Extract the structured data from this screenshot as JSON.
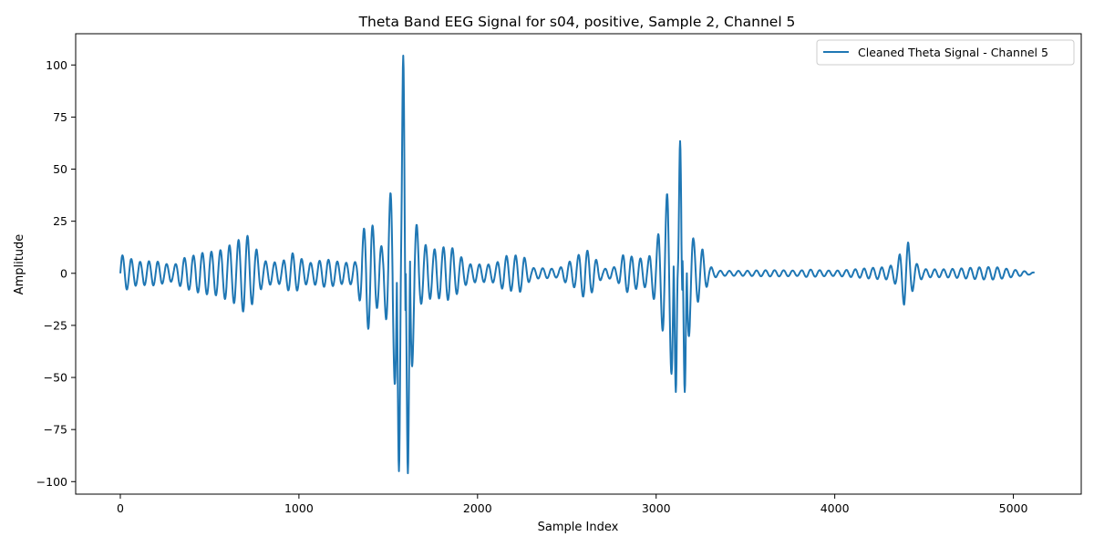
{
  "chart_data": {
    "type": "line",
    "title": "Theta Band EEG Signal for s04, positive, Sample 2, Channel 5",
    "xlabel": "Sample Index",
    "ylabel": "Amplitude",
    "xlim": [
      -250,
      5380
    ],
    "ylim": [
      -106,
      115
    ],
    "xticks": [
      0,
      1000,
      2000,
      3000,
      4000,
      5000
    ],
    "yticks": [
      -100,
      -75,
      -50,
      -25,
      0,
      25,
      50,
      75,
      100
    ],
    "grid": false,
    "legend_position": "top-right",
    "series": [
      {
        "name": "Cleaned Theta Signal - Channel 5",
        "color": "#1f77b4",
        "sample_count": 5120,
        "envelope": [
          [
            0,
            9
          ],
          [
            100,
            6
          ],
          [
            200,
            8
          ],
          [
            300,
            6
          ],
          [
            350,
            11
          ],
          [
            450,
            12
          ],
          [
            550,
            11
          ],
          [
            650,
            15
          ],
          [
            700,
            21
          ],
          [
            750,
            16
          ],
          [
            800,
            8
          ],
          [
            900,
            8
          ],
          [
            960,
            15
          ],
          [
            1050,
            6
          ],
          [
            1150,
            7
          ],
          [
            1250,
            5
          ],
          [
            1320,
            6
          ],
          [
            1380,
            33
          ],
          [
            1400,
            35
          ],
          [
            1430,
            25
          ],
          [
            1470,
            18
          ],
          [
            1500,
            45
          ],
          [
            1520,
            70
          ],
          [
            1540,
            86
          ],
          [
            1560,
            96
          ],
          [
            1585,
            104
          ],
          [
            1610,
            96
          ],
          [
            1630,
            67
          ],
          [
            1650,
            35
          ],
          [
            1680,
            18
          ],
          [
            1750,
            12
          ],
          [
            1850,
            13
          ],
          [
            1950,
            5
          ],
          [
            2050,
            6
          ],
          [
            2100,
            7
          ],
          [
            2150,
            13
          ],
          [
            2250,
            12
          ],
          [
            2300,
            3
          ],
          [
            2450,
            2
          ],
          [
            2550,
            8
          ],
          [
            2600,
            15
          ],
          [
            2650,
            12
          ],
          [
            2700,
            3
          ],
          [
            2780,
            5
          ],
          [
            2820,
            14
          ],
          [
            2870,
            10
          ],
          [
            2950,
            7
          ],
          [
            3000,
            15
          ],
          [
            3040,
            29
          ],
          [
            3060,
            38
          ],
          [
            3090,
            51
          ],
          [
            3110,
            57
          ],
          [
            3135,
            63
          ],
          [
            3160,
            57
          ],
          [
            3180,
            38
          ],
          [
            3210,
            20
          ],
          [
            3260,
            16
          ],
          [
            3300,
            5
          ],
          [
            3350,
            2
          ],
          [
            3500,
            1.5
          ],
          [
            3800,
            1.5
          ],
          [
            3850,
            2.5
          ],
          [
            4000,
            2
          ],
          [
            4300,
            3
          ],
          [
            4350,
            6
          ],
          [
            4390,
            18
          ],
          [
            4410,
            18
          ],
          [
            4430,
            12
          ],
          [
            4460,
            6
          ],
          [
            4500,
            3
          ],
          [
            4600,
            3
          ],
          [
            4750,
            3
          ],
          [
            4900,
            3
          ],
          [
            5050,
            1.5
          ],
          [
            5119,
            0.5
          ]
        ],
        "bursts": [
          {
            "x": 1560,
            "y": -95
          },
          {
            "x": 1585,
            "y": 104.5
          },
          {
            "x": 1610,
            "y": -96
          },
          {
            "x": 3110,
            "y": -57
          },
          {
            "x": 3135,
            "y": 63.5
          },
          {
            "x": 3160,
            "y": -57
          }
        ]
      }
    ]
  }
}
